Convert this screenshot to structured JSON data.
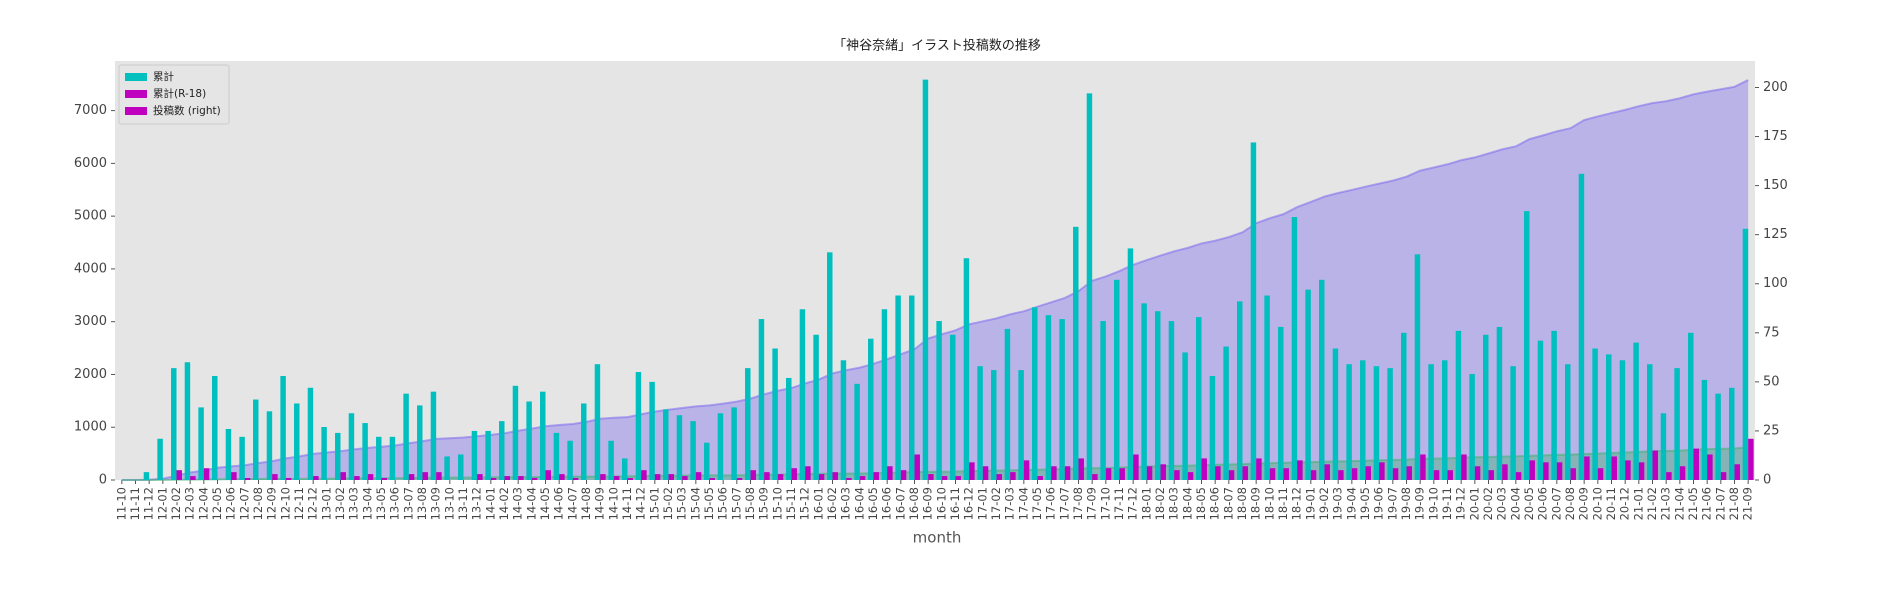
{
  "chart_data": {
    "type": "bar",
    "title": "「神谷奈緒」イラスト投稿数の推移",
    "xlabel": "month",
    "categories": [
      "11-10",
      "11-11",
      "11-12",
      "12-01",
      "12-02",
      "12-03",
      "12-04",
      "12-05",
      "12-06",
      "12-07",
      "12-08",
      "12-09",
      "12-10",
      "12-11",
      "12-12",
      "13-01",
      "13-02",
      "13-03",
      "13-04",
      "13-05",
      "13-06",
      "13-07",
      "13-08",
      "13-09",
      "13-10",
      "13-11",
      "13-12",
      "14-01",
      "14-02",
      "14-03",
      "14-04",
      "14-05",
      "14-06",
      "14-07",
      "14-08",
      "14-09",
      "14-10",
      "14-11",
      "14-12",
      "15-01",
      "15-02",
      "15-03",
      "15-04",
      "15-05",
      "15-06",
      "15-07",
      "15-08",
      "15-09",
      "15-10",
      "15-11",
      "15-12",
      "16-01",
      "16-02",
      "16-03",
      "16-04",
      "16-05",
      "16-06",
      "16-07",
      "16-08",
      "16-09",
      "16-10",
      "16-11",
      "16-12",
      "17-01",
      "17-02",
      "17-03",
      "17-04",
      "17-05",
      "17-06",
      "17-07",
      "17-08",
      "17-09",
      "17-10",
      "17-11",
      "17-12",
      "18-01",
      "18-02",
      "18-03",
      "18-04",
      "18-05",
      "18-06",
      "18-07",
      "18-08",
      "18-09",
      "18-10",
      "18-11",
      "18-12",
      "19-01",
      "19-02",
      "19-03",
      "19-04",
      "19-05",
      "19-06",
      "19-07",
      "19-08",
      "19-09",
      "19-10",
      "19-11",
      "19-12",
      "20-01",
      "20-02",
      "20-03",
      "20-04",
      "20-05",
      "20-06",
      "20-07",
      "20-08",
      "20-09",
      "20-10",
      "20-11",
      "20-12",
      "21-01",
      "21-02",
      "21-03",
      "21-04",
      "21-05",
      "21-06",
      "21-07",
      "21-08",
      "21-09"
    ],
    "series": [
      {
        "type": "area",
        "color": "#7b68ee",
        "values": [
          0,
          0,
          4,
          25,
          82,
          142,
          179,
          232,
          258,
          280,
          321,
          356,
          409,
          448,
          495,
          522,
          546,
          580,
          609,
          631,
          653,
          697,
          735,
          780,
          792,
          805,
          830,
          855,
          885,
          933,
          973,
          1018,
          1042,
          1062,
          1101,
          1160,
          1180,
          1191,
          1246,
          1296,
          1332,
          1365,
          1395,
          1414,
          1448,
          1485,
          1542,
          1624,
          1691,
          1743,
          1830,
          1904,
          2020,
          2081,
          2130,
          2202,
          2289,
          2383,
          2477,
          2681,
          2762,
          2836,
          2949,
          3007,
          3063,
          3140,
          3196,
          3284,
          3368,
          3450,
          3579,
          3776,
          3857,
          3959,
          4077,
          4167,
          4253,
          4334,
          4399,
          4482,
          4535,
          4603,
          4694,
          4866,
          4960,
          5038,
          5172,
          5269,
          5371,
          5438,
          5497,
          5558,
          5616,
          5673,
          5748,
          5863,
          5922,
          5983,
          6059,
          6113,
          6187,
          6265,
          6323,
          6460,
          6531,
          6607,
          6666,
          6822,
          6889,
          6953,
          7014,
          7084,
          7143,
          7177,
          7234,
          7309,
          7360,
          7404,
          7451,
          7579
        ]
      },
      {
        "type": "area",
        "color": "#3cb371",
        "values": [
          0,
          0,
          0,
          0,
          5,
          7,
          13,
          13,
          17,
          18,
          18,
          21,
          22,
          22,
          24,
          24,
          28,
          30,
          33,
          34,
          34,
          37,
          41,
          45,
          45,
          45,
          48,
          49,
          51,
          53,
          54,
          59,
          62,
          63,
          63,
          66,
          68,
          69,
          74,
          77,
          80,
          82,
          86,
          87,
          87,
          88,
          93,
          97,
          100,
          106,
          113,
          116,
          120,
          121,
          123,
          127,
          134,
          139,
          152,
          155,
          157,
          159,
          168,
          175,
          178,
          182,
          192,
          194,
          201,
          208,
          219,
          222,
          228,
          234,
          247,
          254,
          262,
          267,
          271,
          282,
          289,
          294,
          301,
          312,
          318,
          324,
          334,
          339,
          347,
          352,
          358,
          365,
          374,
          380,
          387,
          400,
          405,
          410,
          423,
          430,
          435,
          443,
          447,
          457,
          466,
          475,
          481,
          493,
          499,
          511,
          521,
          530,
          545,
          549,
          556,
          572,
          585,
          589,
          597,
          618
        ]
      },
      {
        "type": "bar",
        "color": "#00bfbf",
        "axis": "y2",
        "values": [
          0,
          0,
          4,
          21,
          57,
          60,
          37,
          53,
          26,
          22,
          41,
          35,
          53,
          39,
          47,
          27,
          24,
          34,
          29,
          22,
          22,
          44,
          38,
          45,
          12,
          13,
          25,
          25,
          30,
          48,
          40,
          45,
          24,
          20,
          39,
          59,
          20,
          11,
          55,
          50,
          36,
          33,
          30,
          19,
          34,
          37,
          57,
          82,
          67,
          52,
          87,
          74,
          116,
          61,
          49,
          72,
          87,
          94,
          94,
          204,
          81,
          74,
          113,
          58,
          56,
          77,
          56,
          88,
          84,
          82,
          129,
          197,
          81,
          102,
          118,
          90,
          86,
          81,
          65,
          83,
          53,
          68,
          91,
          172,
          94,
          78,
          134,
          97,
          102,
          67,
          59,
          61,
          58,
          57,
          75,
          115,
          59,
          61,
          76,
          54,
          74,
          78,
          58,
          137,
          71,
          76,
          59,
          156,
          67,
          64,
          61,
          70,
          59,
          34,
          57,
          75,
          51,
          44,
          47,
          128
        ]
      },
      {
        "type": "bar",
        "color": "#bf00bf",
        "axis": "y2",
        "values": [
          0,
          0,
          0,
          0,
          5,
          2,
          6,
          0,
          4,
          1,
          0,
          3,
          1,
          0,
          2,
          0,
          4,
          2,
          3,
          1,
          0,
          3,
          4,
          4,
          0,
          0,
          3,
          1,
          2,
          2,
          1,
          5,
          3,
          1,
          0,
          3,
          2,
          1,
          5,
          3,
          3,
          2,
          4,
          1,
          0,
          1,
          5,
          4,
          3,
          6,
          7,
          3,
          4,
          1,
          2,
          4,
          7,
          5,
          13,
          3,
          2,
          2,
          9,
          7,
          3,
          4,
          10,
          2,
          7,
          7,
          11,
          3,
          6,
          6,
          13,
          7,
          8,
          5,
          4,
          11,
          7,
          5,
          7,
          11,
          6,
          6,
          10,
          5,
          8,
          5,
          6,
          7,
          9,
          6,
          7,
          13,
          5,
          5,
          13,
          7,
          5,
          8,
          4,
          10,
          9,
          9,
          6,
          12,
          6,
          12,
          10,
          9,
          15,
          4,
          7,
          16,
          13,
          4,
          8,
          21
        ]
      }
    ],
    "legend": {
      "loc": "upper left",
      "entries": [
        {
          "label": "累計",
          "color": "#00bfbf"
        },
        {
          "label": "累計(R-18)",
          "color": "#bf00bf"
        },
        {
          "label": "投稿数 (right)",
          "color": "#bf00bf"
        }
      ]
    },
    "ylim": [
      0,
      7940
    ],
    "yticks": [
      0,
      1000,
      2000,
      3000,
      4000,
      5000,
      6000,
      7000
    ],
    "y2lim": [
      0,
      213.5
    ],
    "y2ticks": [
      0,
      25,
      50,
      75,
      100,
      125,
      150,
      175,
      200
    ],
    "grid": false
  }
}
